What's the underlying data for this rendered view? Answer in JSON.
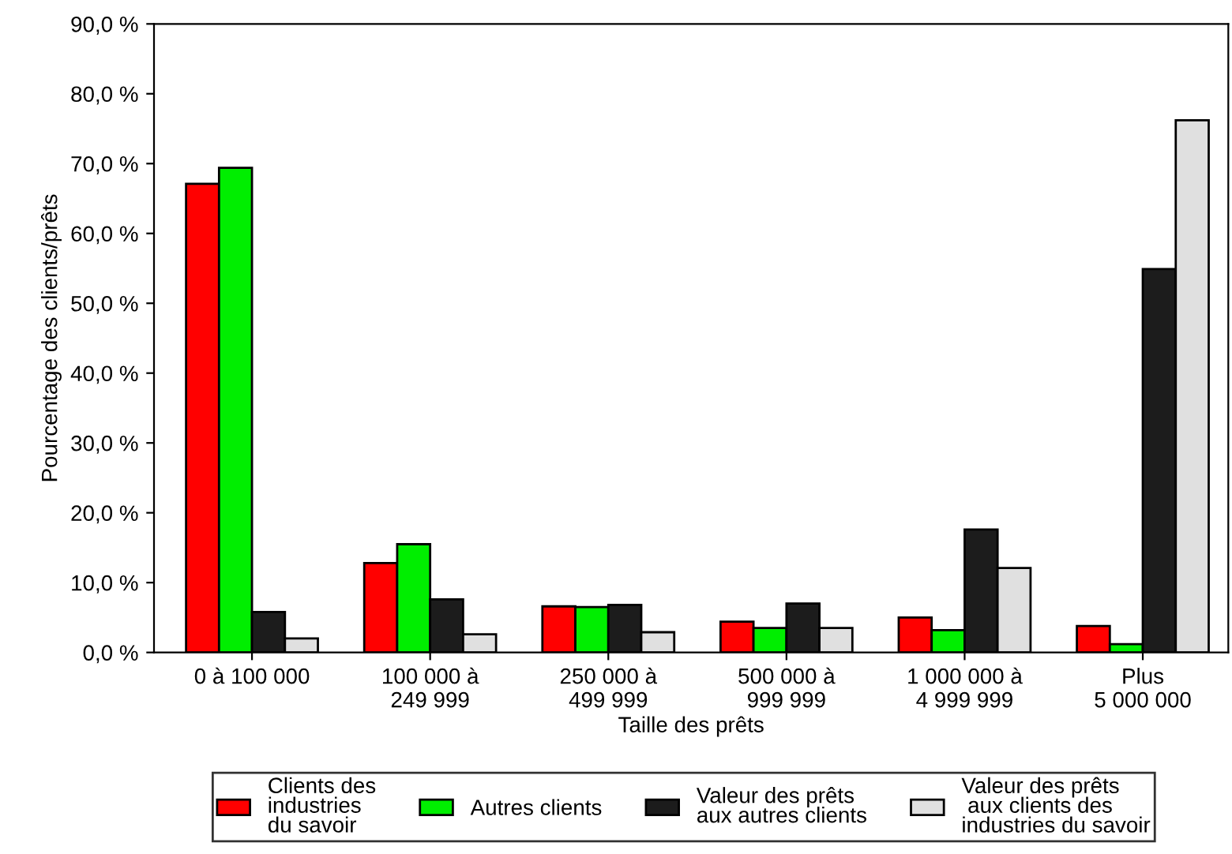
{
  "chart_data": {
    "type": "bar",
    "xlabel": "Taille des prêts",
    "ylabel": "Pourcentage des clients/prêts",
    "categories": [
      "0 à 100 000",
      "100 000 à\n249 999",
      "250 000 à\n499 999",
      "500 000 à\n999 999",
      "1 000 000 à\n4 999 999",
      "Plus\n5 000 000"
    ],
    "series": [
      {
        "name": "Clients des\nindustries\ndu savoir",
        "color": "#ff0000",
        "values": [
          67.1,
          12.8,
          6.6,
          4.4,
          5.0,
          3.8
        ]
      },
      {
        "name": "Autres clients",
        "color": "#00ee00",
        "values": [
          69.4,
          15.5,
          6.5,
          3.5,
          3.2,
          1.2
        ]
      },
      {
        "name": "Valeur des prêts\naux autres clients",
        "color": "#1c1c1c",
        "values": [
          5.8,
          7.6,
          6.8,
          7.0,
          17.6,
          54.9
        ]
      },
      {
        "name": "Valeur des prêts\n aux clients des\nindustries du savoir",
        "color": "#e0e0e0",
        "values": [
          2.0,
          2.6,
          2.9,
          3.5,
          12.1,
          76.2
        ]
      }
    ],
    "ylim": [
      0,
      90
    ],
    "yticks": [
      {
        "value": 0,
        "label": "0,0 %"
      },
      {
        "value": 10,
        "label": "10,0 %"
      },
      {
        "value": 20,
        "label": "20,0 %"
      },
      {
        "value": 30,
        "label": "30,0 %"
      },
      {
        "value": 40,
        "label": "40,0 %"
      },
      {
        "value": 50,
        "label": "50,0 %"
      },
      {
        "value": 60,
        "label": "60,0 %"
      },
      {
        "value": 70,
        "label": "70,0 %"
      },
      {
        "value": 80,
        "label": "80,0 %"
      },
      {
        "value": 90,
        "label": "90,0 %"
      }
    ],
    "legend": "bottom",
    "grid": false
  }
}
